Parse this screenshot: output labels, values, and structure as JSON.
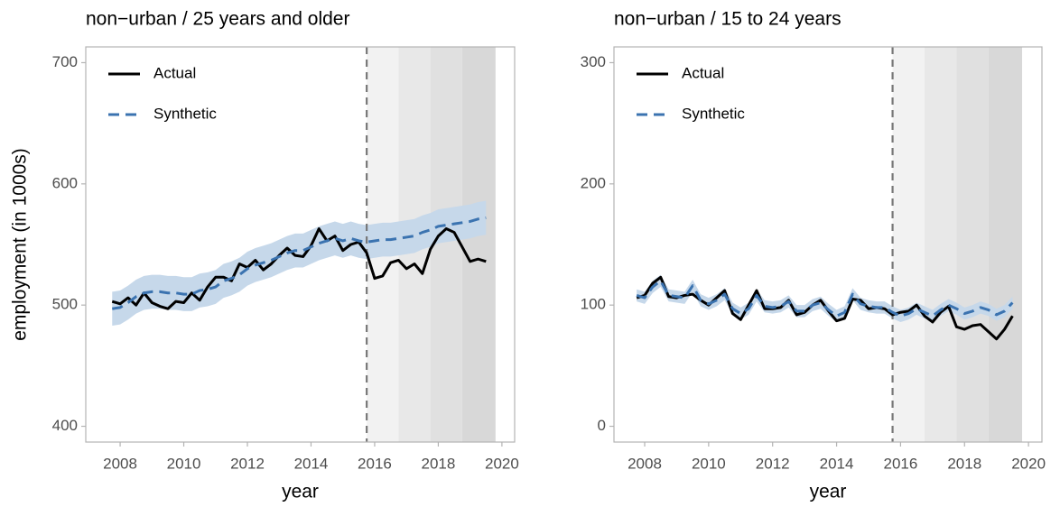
{
  "chart_data": [
    {
      "type": "line",
      "title": "non−urban / 25 years and older",
      "xlabel": "year",
      "ylabel": "employment (in 1000s)",
      "x": [
        2007.75,
        2008,
        2008.25,
        2008.5,
        2008.75,
        2009,
        2009.25,
        2009.5,
        2009.75,
        2010,
        2010.25,
        2010.5,
        2010.75,
        2011,
        2011.25,
        2011.5,
        2011.75,
        2012,
        2012.25,
        2012.5,
        2012.75,
        2013,
        2013.25,
        2013.5,
        2013.75,
        2014,
        2014.25,
        2014.5,
        2014.75,
        2015,
        2015.25,
        2015.5,
        2015.75,
        2016,
        2016.25,
        2016.5,
        2016.75,
        2017,
        2017.25,
        2017.5,
        2017.75,
        2018,
        2018.25,
        2018.5,
        2018.75,
        2019,
        2019.25,
        2019.5
      ],
      "series": [
        {
          "name": "Actual",
          "color": "#000000",
          "dash": false,
          "values": [
            503,
            501,
            506,
            500,
            510,
            502,
            499,
            497,
            503,
            502,
            510,
            504,
            515,
            523,
            523,
            520,
            534,
            531,
            537,
            529,
            534,
            541,
            547,
            541,
            540,
            549,
            563,
            553,
            557,
            545,
            550,
            552,
            543,
            522,
            524,
            535,
            537,
            530,
            534,
            526,
            546,
            557,
            563,
            560,
            548,
            536,
            538,
            536
          ]
        },
        {
          "name": "Synthetic",
          "color": "#3b73b0",
          "dash": true,
          "values": [
            497,
            498,
            502,
            507,
            510,
            511,
            511,
            510,
            510,
            509,
            509,
            512,
            513,
            515,
            520,
            522,
            525,
            530,
            533,
            535,
            537,
            540,
            543,
            545,
            545,
            548,
            551,
            553,
            555,
            553,
            555,
            553,
            552,
            553,
            554,
            554,
            555,
            556,
            557,
            560,
            562,
            565,
            566,
            567,
            568,
            569,
            571,
            572
          ]
        }
      ],
      "band": {
        "color": "#c6d8ea",
        "lower": [
          483,
          484,
          488,
          493,
          496,
          497,
          497,
          496,
          496,
          495,
          495,
          498,
          499,
          501,
          506,
          508,
          511,
          516,
          519,
          521,
          523,
          526,
          529,
          531,
          531,
          534,
          537,
          539,
          541,
          539,
          541,
          539,
          538,
          539,
          540,
          540,
          541,
          542,
          543,
          546,
          548,
          551,
          552,
          553,
          554,
          555,
          557,
          558
        ],
        "upper": [
          511,
          512,
          516,
          521,
          524,
          525,
          525,
          524,
          524,
          523,
          523,
          526,
          527,
          529,
          534,
          536,
          539,
          544,
          547,
          549,
          551,
          554,
          557,
          559,
          559,
          562,
          565,
          567,
          569,
          567,
          569,
          567,
          566,
          567,
          568,
          568,
          569,
          570,
          571,
          574,
          576,
          579,
          580,
          581,
          582,
          583,
          585,
          586
        ]
      },
      "shaded": [
        {
          "range": [
            2015.75,
            2016.75
          ],
          "color": "#f2f2f2"
        },
        {
          "range": [
            2016.75,
            2017.75
          ],
          "color": "#e8e8e8"
        },
        {
          "range": [
            2017.75,
            2018.75
          ],
          "color": "#e0e0e0"
        },
        {
          "range": [
            2018.75,
            2019.8
          ],
          "color": "#d8d8d8"
        }
      ],
      "vline": 2015.75,
      "xlim": [
        2006.92,
        2020.4
      ],
      "xticks": [
        2008,
        2010,
        2012,
        2014,
        2016,
        2018,
        2020
      ],
      "ylim": [
        387,
        713
      ],
      "yticks": [
        400,
        500,
        600,
        700
      ],
      "legend": "top-left"
    },
    {
      "type": "line",
      "title": "non−urban / 15 to 24 years",
      "xlabel": "year",
      "x": [
        2007.75,
        2008,
        2008.25,
        2008.5,
        2008.75,
        2009,
        2009.25,
        2009.5,
        2009.75,
        2010,
        2010.25,
        2010.5,
        2010.75,
        2011,
        2011.25,
        2011.5,
        2011.75,
        2012,
        2012.25,
        2012.5,
        2012.75,
        2013,
        2013.25,
        2013.5,
        2013.75,
        2014,
        2014.25,
        2014.5,
        2014.75,
        2015,
        2015.25,
        2015.5,
        2015.75,
        2016,
        2016.25,
        2016.5,
        2016.75,
        2017,
        2017.25,
        2017.5,
        2017.75,
        2018,
        2018.25,
        2018.5,
        2018.75,
        2019,
        2019.25,
        2019.5
      ],
      "series": [
        {
          "name": "Actual",
          "color": "#000000",
          "dash": false,
          "values": [
            106,
            108,
            118,
            123,
            107,
            106,
            108,
            109,
            104,
            100,
            106,
            112,
            93,
            88,
            100,
            112,
            97,
            97,
            98,
            104,
            92,
            94,
            100,
            104,
            95,
            87,
            89,
            105,
            104,
            97,
            98,
            97,
            92,
            94,
            95,
            100,
            91,
            86,
            94,
            99,
            82,
            80,
            83,
            84,
            78,
            72,
            80,
            91
          ]
        },
        {
          "name": "Synthetic",
          "color": "#3b73b0",
          "dash": true,
          "values": [
            108,
            106,
            115,
            120,
            108,
            107,
            106,
            116,
            104,
            101,
            104,
            109,
            97,
            93,
            97,
            108,
            99,
            98,
            99,
            103,
            95,
            95,
            100,
            102,
            96,
            91,
            94,
            109,
            101,
            99,
            98,
            98,
            94,
            91,
            93,
            97,
            94,
            91,
            96,
            100,
            97,
            93,
            95,
            98,
            96,
            92,
            95,
            102
          ]
        }
      ],
      "band": {
        "color": "#c6d8ea",
        "lower": [
          103,
          101,
          110,
          115,
          103,
          102,
          101,
          111,
          99,
          96,
          99,
          104,
          92,
          88,
          92,
          103,
          94,
          93,
          94,
          98,
          90,
          90,
          95,
          97,
          91,
          86,
          89,
          104,
          96,
          94,
          93,
          93,
          89,
          86,
          88,
          92,
          89,
          86,
          91,
          95,
          92,
          88,
          90,
          93,
          91,
          87,
          90,
          97
        ],
        "upper": [
          113,
          111,
          120,
          125,
          113,
          112,
          111,
          121,
          109,
          106,
          109,
          114,
          102,
          98,
          102,
          113,
          104,
          103,
          104,
          108,
          100,
          100,
          105,
          107,
          101,
          96,
          99,
          114,
          106,
          104,
          103,
          103,
          99,
          96,
          98,
          102,
          99,
          96,
          101,
          105,
          102,
          98,
          100,
          103,
          101,
          97,
          100,
          107
        ]
      },
      "shaded": [
        {
          "range": [
            2015.75,
            2016.75
          ],
          "color": "#f2f2f2"
        },
        {
          "range": [
            2016.75,
            2017.75
          ],
          "color": "#e8e8e8"
        },
        {
          "range": [
            2017.75,
            2018.75
          ],
          "color": "#e0e0e0"
        },
        {
          "range": [
            2018.75,
            2019.8
          ],
          "color": "#d8d8d8"
        }
      ],
      "vline": 2015.75,
      "xlim": [
        2007.04,
        2020.42
      ],
      "xticks": [
        2008,
        2010,
        2012,
        2014,
        2016,
        2018,
        2020
      ],
      "ylim": [
        -13,
        313
      ],
      "yticks": [
        0,
        100,
        200,
        300
      ],
      "legend": "top-left"
    }
  ]
}
